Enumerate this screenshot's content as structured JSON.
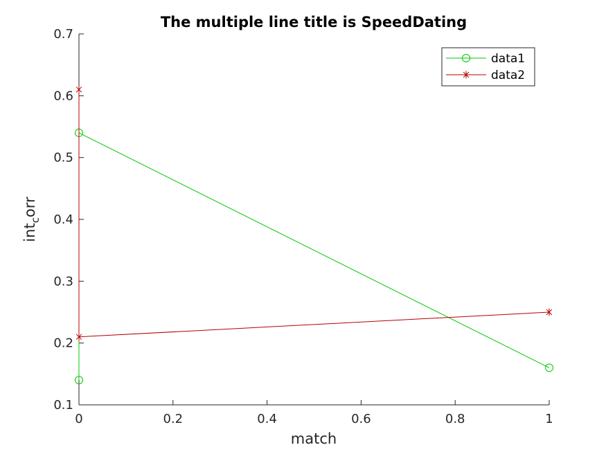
{
  "chart_data": {
    "type": "line",
    "title": "The multiple line title is SpeedDating",
    "xlabel": "match",
    "ylabel_main": "int",
    "ylabel_sub": "c",
    "ylabel_rest": "orr",
    "xlim": [
      0,
      1
    ],
    "ylim": [
      0.1,
      0.7
    ],
    "xticks": [
      "0",
      "0.2",
      "0.4",
      "0.6",
      "0.8",
      "1"
    ],
    "yticks": [
      "0.1",
      "0.2",
      "0.3",
      "0.4",
      "0.5",
      "0.6",
      "0.7"
    ],
    "grid": false,
    "legend_position": "top-right",
    "series": [
      {
        "name": "data1",
        "color": "#00c800",
        "marker": "circle",
        "x": [
          0,
          0,
          1
        ],
        "y": [
          0.14,
          0.54,
          0.16
        ]
      },
      {
        "name": "data2",
        "color": "#b40000",
        "marker": "asterisk",
        "x": [
          0,
          0,
          1
        ],
        "y": [
          0.61,
          0.21,
          0.25
        ]
      }
    ]
  }
}
